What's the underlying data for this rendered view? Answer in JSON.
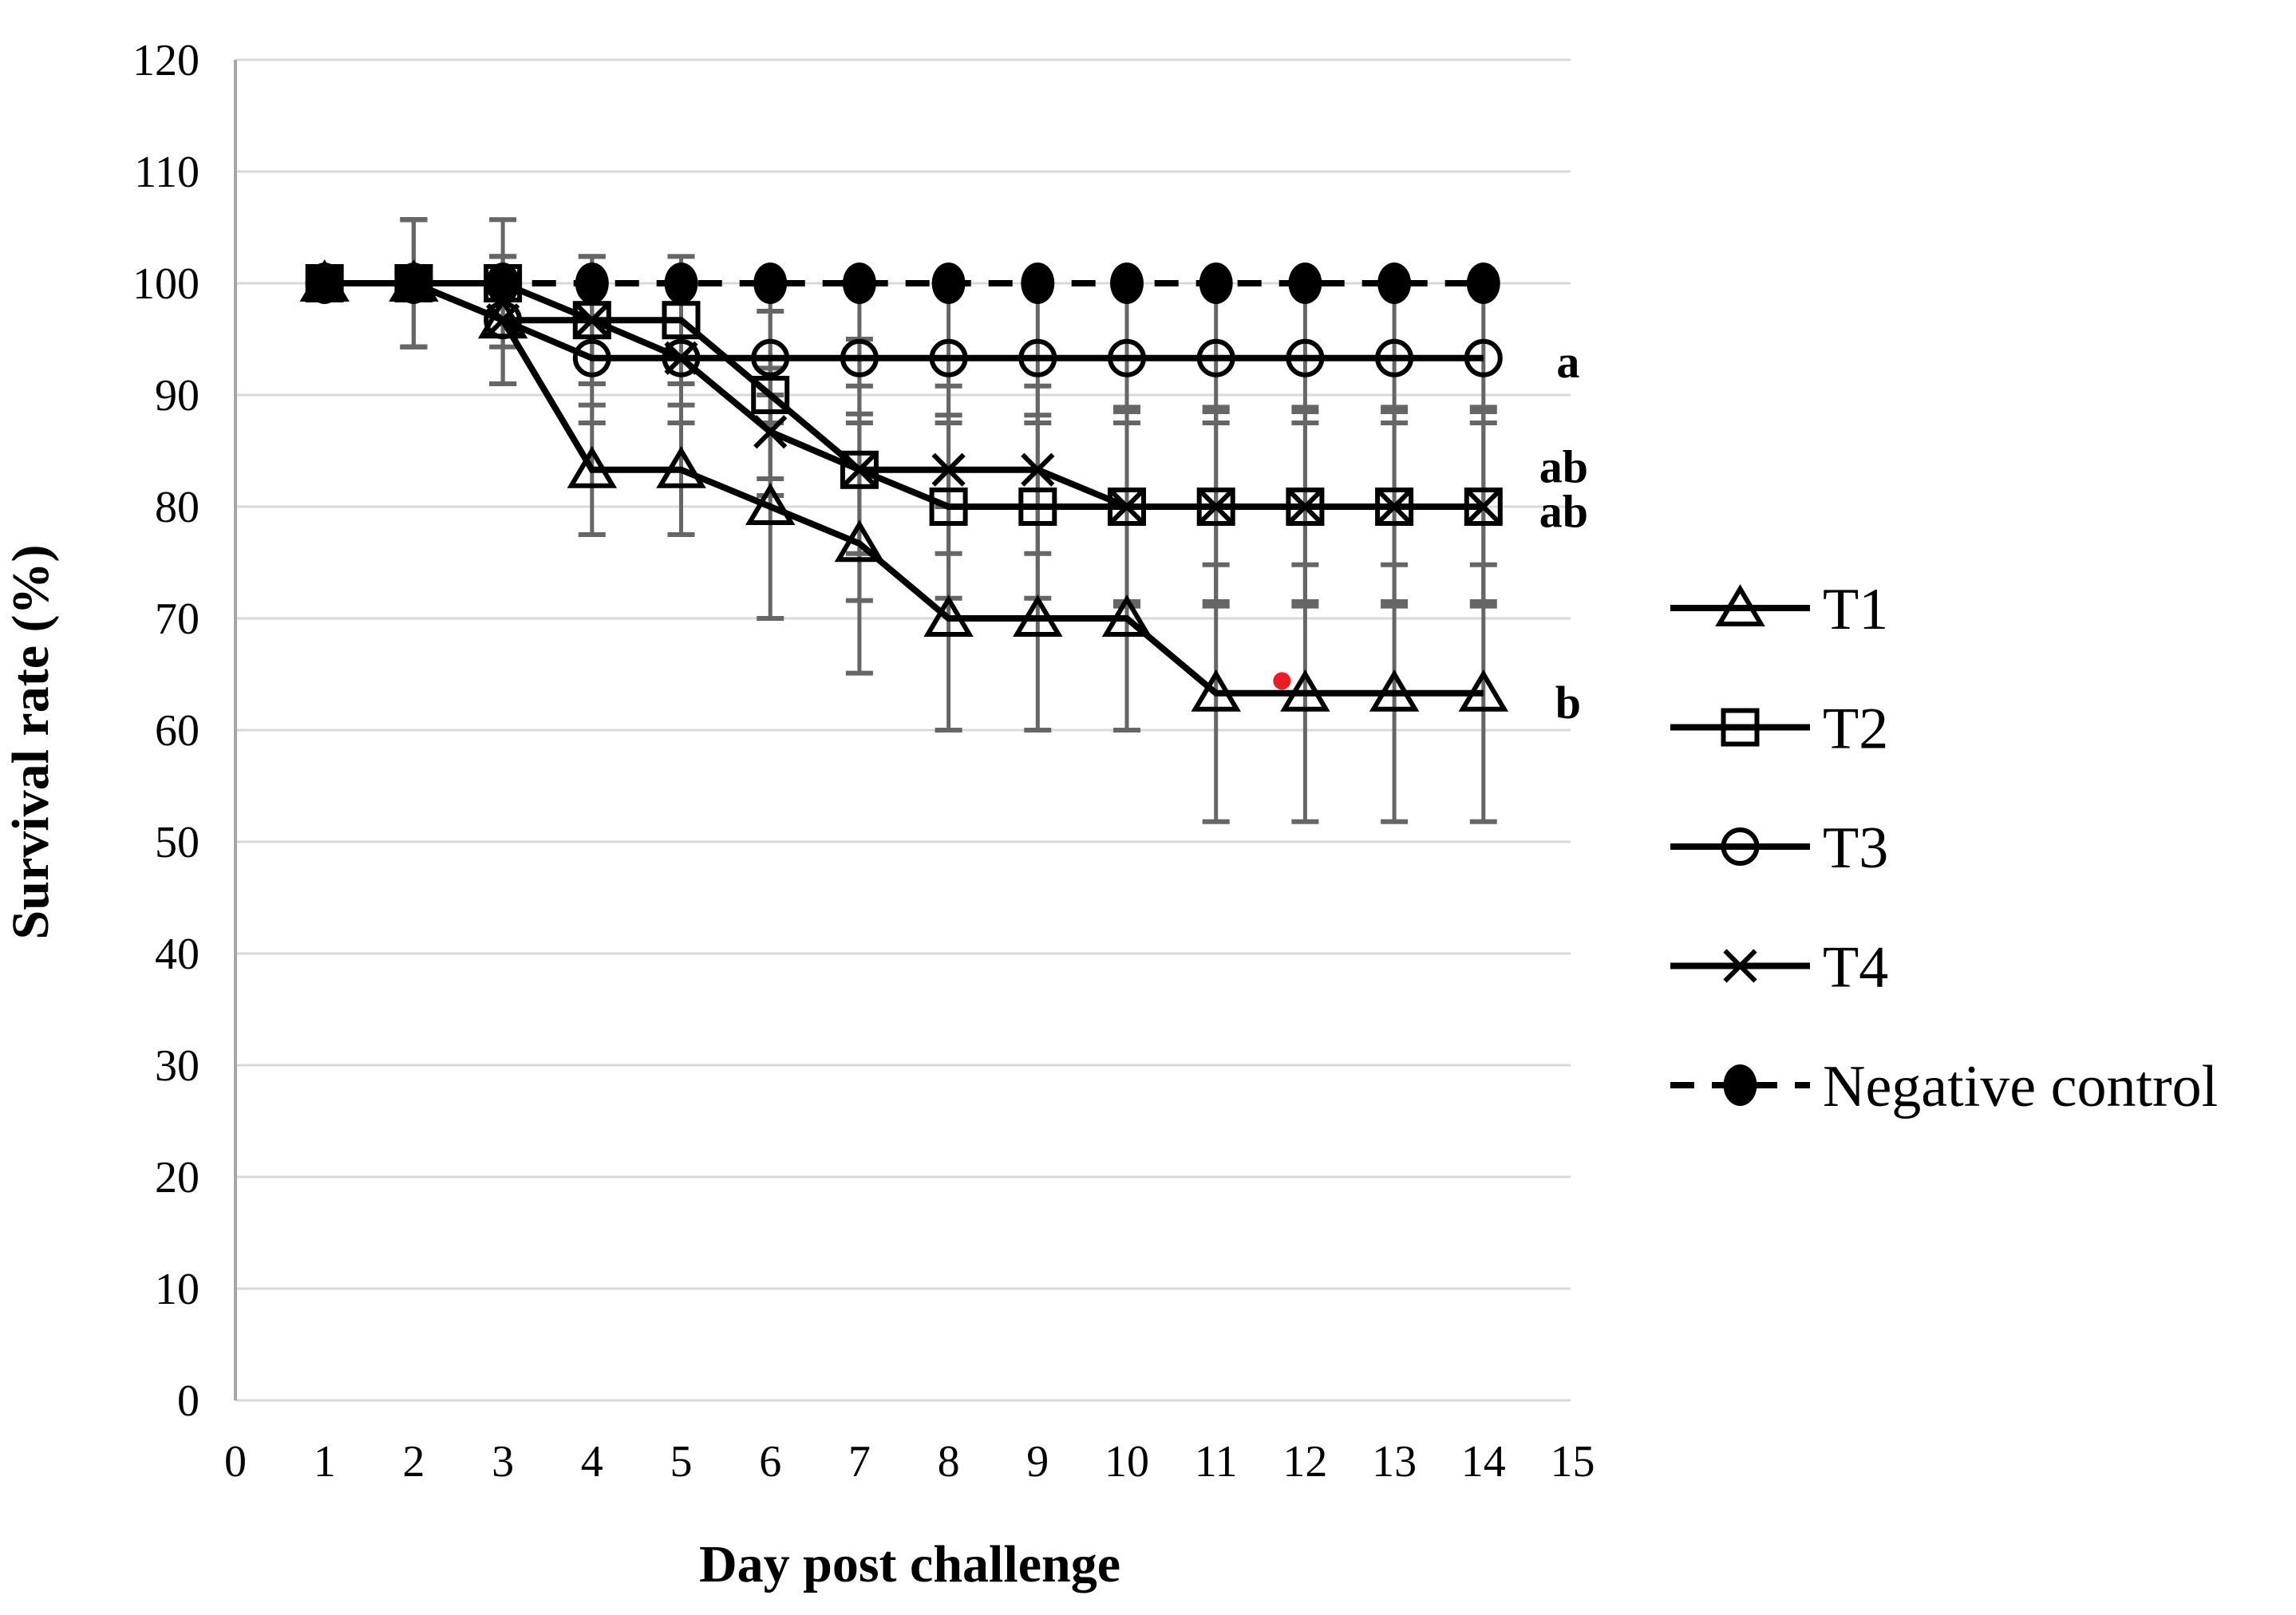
{
  "chart_data": {
    "type": "line",
    "title": "",
    "xlabel": "Day post challenge",
    "ylabel": "Survival rate (%)",
    "xlim": [
      0,
      15
    ],
    "ylim": [
      0,
      120
    ],
    "x_ticks": [
      0,
      1,
      2,
      3,
      4,
      5,
      6,
      7,
      8,
      9,
      10,
      11,
      12,
      13,
      14,
      15
    ],
    "y_ticks": [
      0,
      10,
      20,
      30,
      40,
      50,
      60,
      70,
      80,
      90,
      100,
      110,
      120
    ],
    "grid": "horizontal-only",
    "legend_position": "right",
    "colors": {
      "series": "#000000",
      "error_bar": "#666666",
      "gridline": "#d9d9d9",
      "axis_line": "#a6a6a6",
      "text": "#000000",
      "stray_dot": "#ec1c24"
    },
    "x": [
      1,
      2,
      3,
      4,
      5,
      6,
      7,
      8,
      9,
      10,
      11,
      12,
      13,
      14
    ],
    "series": [
      {
        "name": "T1",
        "marker": "triangle",
        "line_style": "solid",
        "values": [
          100,
          100,
          96.7,
          83.3,
          83.3,
          80,
          76.7,
          70,
          70,
          70,
          63.3,
          63.3,
          63.3,
          63.3
        ],
        "errors": [
          0,
          5.7,
          5.7,
          5.8,
          5.8,
          10,
          11.6,
          10,
          10,
          10,
          11.5,
          11.5,
          11.5,
          11.5
        ]
      },
      {
        "name": "T2",
        "marker": "square",
        "line_style": "solid",
        "values": [
          100,
          100,
          100,
          96.7,
          96.7,
          90,
          83.3,
          80,
          80,
          80,
          80,
          80,
          80,
          80
        ],
        "errors": [
          0,
          5.7,
          5.7,
          5.7,
          5.7,
          7.5,
          11.7,
          8.2,
          8.2,
          8.9,
          8.9,
          8.9,
          8.9,
          8.9
        ]
      },
      {
        "name": "T3",
        "marker": "circle",
        "line_style": "solid",
        "values": [
          100,
          100,
          96.7,
          93.3,
          93.3,
          93.3,
          93.3,
          93.3,
          93.3,
          93.3,
          93.3,
          93.3,
          93.3,
          93.3
        ],
        "errors": [
          0,
          5.7,
          5.7,
          5.8,
          5.8,
          5.8,
          5.8,
          5.8,
          5.8,
          5.8,
          5.8,
          5.8,
          5.8,
          5.8
        ]
      },
      {
        "name": "T4",
        "marker": "x",
        "line_style": "solid",
        "values": [
          100,
          100,
          96.7,
          96.7,
          93.3,
          86.7,
          83.3,
          83.3,
          83.3,
          80,
          80,
          80,
          80,
          80
        ],
        "errors": [
          0,
          5.7,
          5.7,
          5.7,
          5.8,
          5.7,
          7.5,
          7.5,
          7.5,
          8.5,
          8.5,
          8.5,
          8.5,
          8.5
        ]
      },
      {
        "name": "Negative control",
        "marker": "filled-circle",
        "line_style": "dashed",
        "values": [
          100,
          100,
          100,
          100,
          100,
          100,
          100,
          100,
          100,
          100,
          100,
          100,
          100,
          100
        ],
        "errors": [
          0,
          0,
          0,
          0,
          0,
          0,
          0,
          0,
          0,
          0,
          0,
          0,
          0,
          0
        ]
      }
    ],
    "sig_labels": [
      {
        "text": "a",
        "x": 14.95,
        "y": 93.0
      },
      {
        "text": "ab",
        "x": 14.9,
        "y": 83.6
      },
      {
        "text": "ab",
        "x": 14.9,
        "y": 79.6
      },
      {
        "text": "b",
        "x": 14.95,
        "y": 62.5
      }
    ],
    "stray_dot": {
      "x": 11.74,
      "y": 64.4
    }
  }
}
